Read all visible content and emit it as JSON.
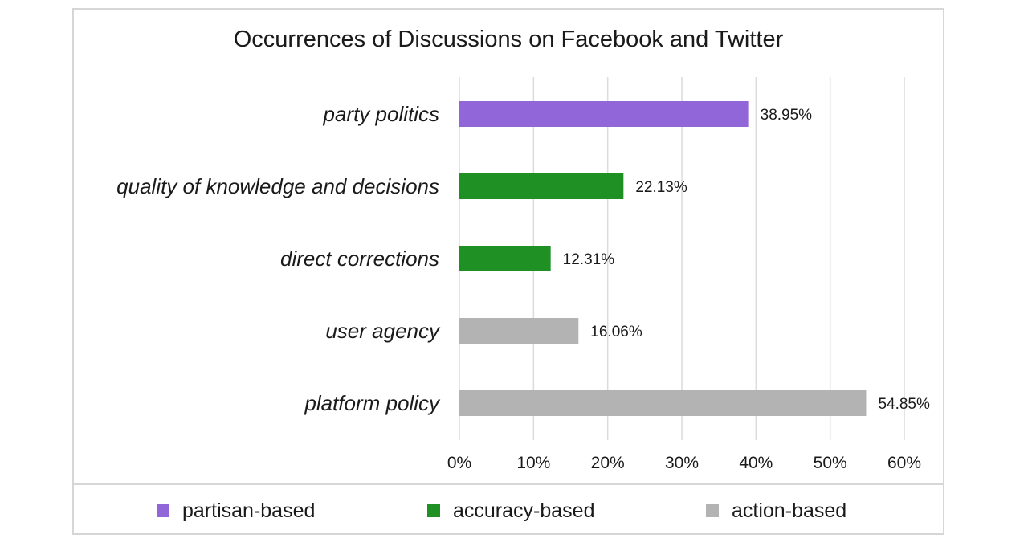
{
  "chart_data": {
    "type": "bar",
    "orientation": "horizontal",
    "title": "Occurrences of Discussions on Facebook and Twitter",
    "categories": [
      "party politics",
      "quality of knowledge and decisions",
      "direct corrections",
      "user agency",
      "platform policy"
    ],
    "values": [
      38.95,
      22.13,
      12.31,
      16.06,
      54.85
    ],
    "value_labels": [
      "38.95%",
      "22.13%",
      "12.31%",
      "16.06%",
      "54.85%"
    ],
    "groups": [
      "partisan-based",
      "accuracy-based",
      "accuracy-based",
      "action-based",
      "action-based"
    ],
    "xlim": [
      0,
      60
    ],
    "xticks": [
      0,
      10,
      20,
      30,
      40,
      50,
      60
    ],
    "xtick_labels": [
      "0%",
      "10%",
      "20%",
      "30%",
      "40%",
      "50%",
      "60%"
    ],
    "grid": "vertical",
    "legend_position": "bottom",
    "legend": [
      {
        "name": "partisan-based",
        "color": "#9166d9"
      },
      {
        "name": "accuracy-based",
        "color": "#1f9124"
      },
      {
        "name": "action-based",
        "color": "#b3b3b3"
      }
    ]
  }
}
